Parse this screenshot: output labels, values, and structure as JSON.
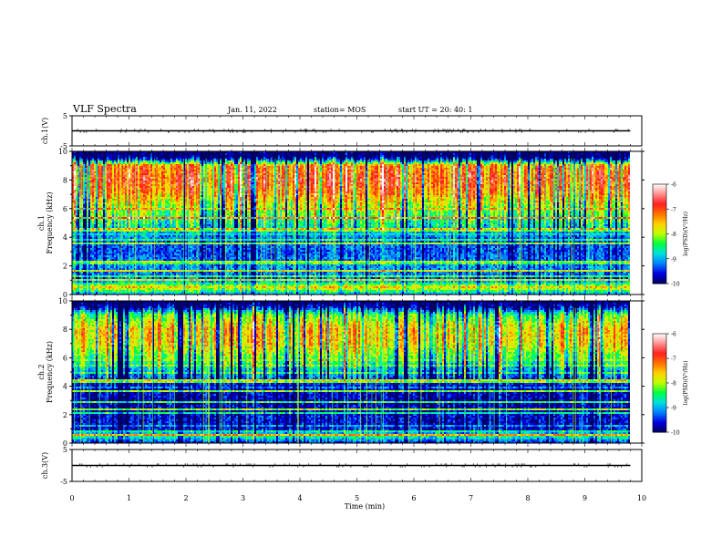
{
  "header": {
    "title": "VLF Spectra",
    "date": "Jan. 11, 2022",
    "station": "station= MOS",
    "start": "start UT =  20: 40: 1"
  },
  "colormap": {
    "stops": [
      "#000060",
      "#0000e0",
      "#0080ff",
      "#00e0e0",
      "#00ff40",
      "#c0ff00",
      "#ffd000",
      "#ff7000",
      "#ff2020",
      "#ff9090",
      "#ffffff"
    ]
  },
  "chart_data": [
    {
      "type": "line",
      "panel": "ch1",
      "ylabel": "ch.1(V)",
      "ylim": [
        -5,
        5
      ],
      "yticks": [
        "5",
        "-5"
      ],
      "x": [
        0,
        9.8
      ],
      "values": [
        0,
        0
      ]
    },
    {
      "type": "heatmap",
      "panel": "ch1_spectrogram",
      "ylabel": "ch.1\nFrequency (kHz)",
      "ylim": [
        0,
        10
      ],
      "yticks": [
        "0",
        "2",
        "4",
        "6",
        "8",
        "10"
      ],
      "xlim": [
        0,
        10
      ],
      "data_end_min": 9.8,
      "colorbar": {
        "label": "log(PSD)(V²/Hz)",
        "range": [
          -10,
          -6
        ],
        "ticks": [
          "-6",
          "-7",
          "-8",
          "-9",
          "-10"
        ]
      },
      "spectral_profile": {
        "freq_khz": [
          0,
          0.5,
          1,
          2,
          3,
          4,
          5,
          6,
          7,
          8,
          9,
          9.5,
          10
        ],
        "log_psd": [
          -9.2,
          -7.6,
          -9.3,
          -9.1,
          -9.4,
          -9.2,
          -8.6,
          -8.1,
          -7.4,
          -7.0,
          -7.3,
          -9.9,
          -10
        ]
      }
    },
    {
      "type": "heatmap",
      "panel": "ch2_spectrogram",
      "ylabel": "ch.2\nFrequency (kHz)",
      "ylim": [
        0,
        10
      ],
      "yticks": [
        "0",
        "2",
        "4",
        "6",
        "8",
        "10"
      ],
      "xlim": [
        0,
        10
      ],
      "data_end_min": 9.8,
      "colorbar": {
        "label": "log(PSD)(V²/Hz)",
        "range": [
          -10,
          -6
        ],
        "ticks": [
          "-6",
          "-7",
          "-8",
          "-9",
          "-10"
        ]
      },
      "spectral_profile": {
        "freq_khz": [
          0,
          0.5,
          1,
          2,
          3,
          4,
          5,
          6,
          7,
          8,
          9,
          9.5,
          10
        ],
        "log_psd": [
          -9.6,
          -8.4,
          -9.6,
          -9.6,
          -9.7,
          -9.6,
          -9.0,
          -8.2,
          -7.6,
          -7.5,
          -8.2,
          -9.6,
          -10
        ]
      }
    },
    {
      "type": "line",
      "panel": "ch3",
      "ylabel": "ch.3(V)",
      "ylim": [
        -5,
        5
      ],
      "yticks": [
        "5",
        "-5"
      ],
      "x": [
        0,
        9.8
      ],
      "values": [
        0,
        0
      ]
    }
  ],
  "xaxis": {
    "label": "Time (min)",
    "ticks": [
      "0",
      "1",
      "2",
      "3",
      "4",
      "5",
      "6",
      "7",
      "8",
      "9",
      "10"
    ]
  }
}
